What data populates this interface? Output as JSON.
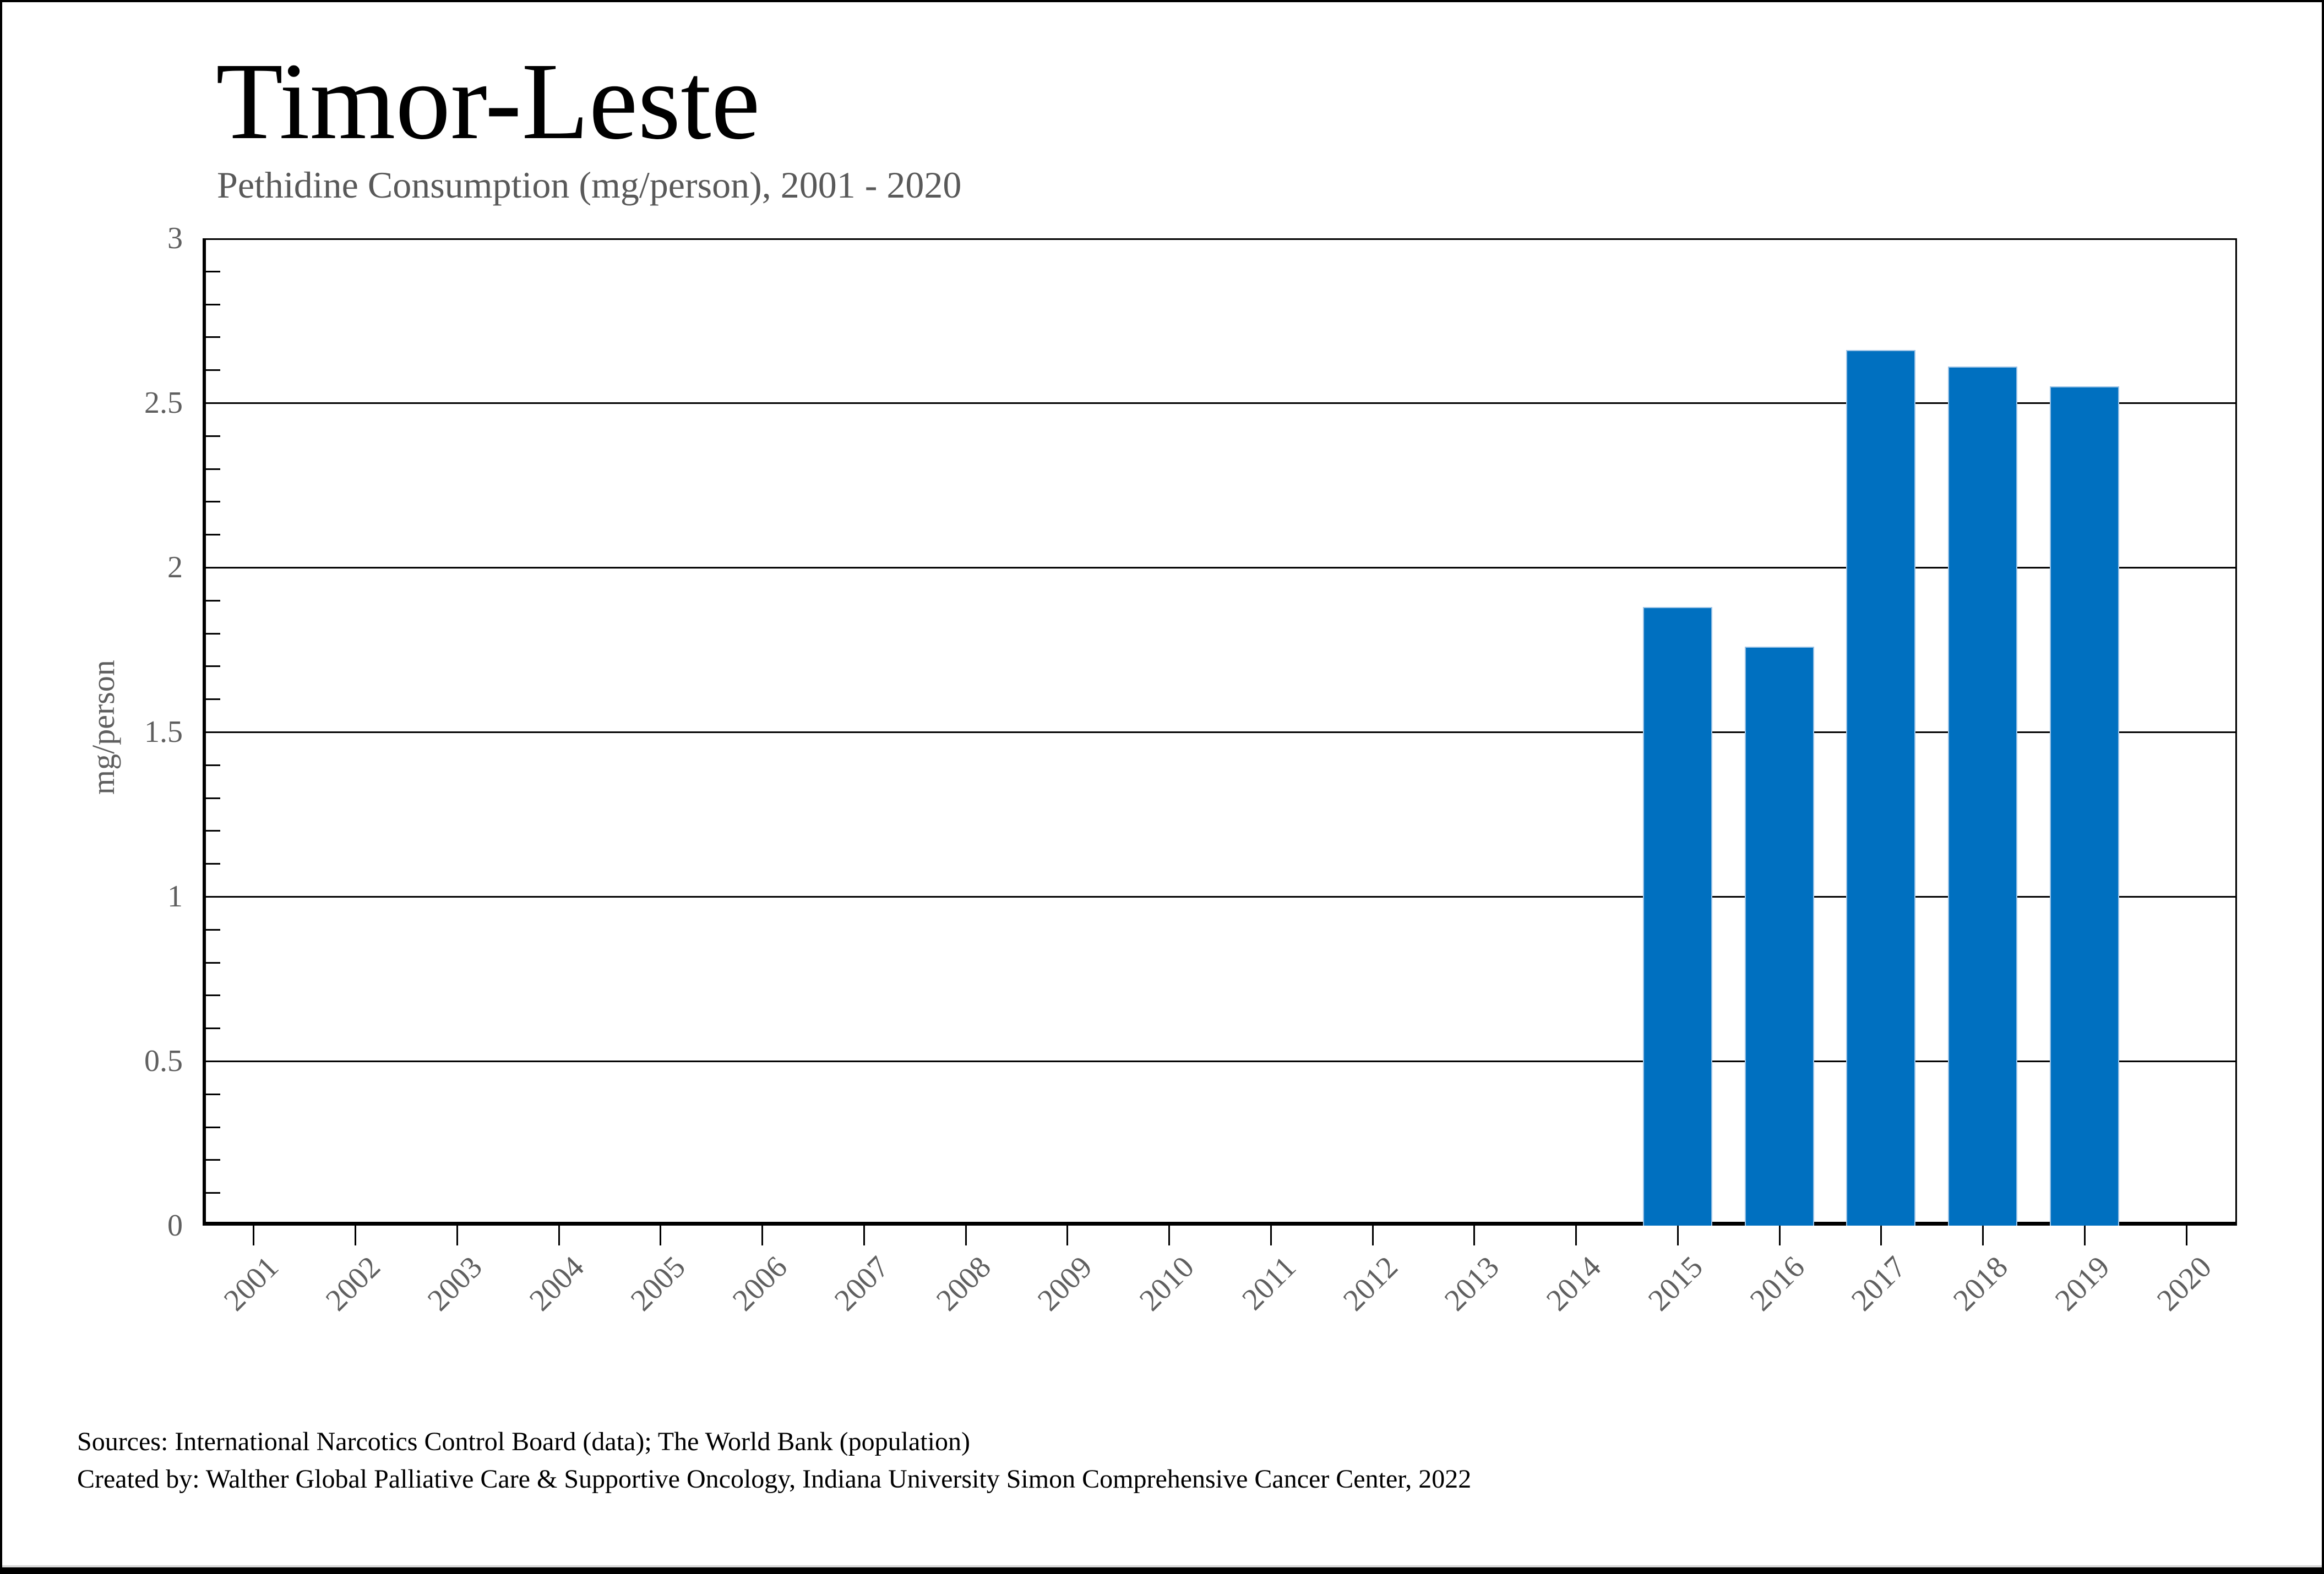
{
  "page": {
    "background_color": "#ffffff",
    "border_color": "#000000"
  },
  "header": {
    "title": "Timor-Leste",
    "subtitle": "Pethidine Consumption (mg/person), 2001 - 2020"
  },
  "footer": {
    "sources_line": "Sources: International Narcotics Control Board (data); The World Bank (population)",
    "created_line": "Created by: Walther Global Palliative Care & Supportive Oncology, Indiana University Simon Comprehensive Cancer Center, 2022"
  },
  "chart_data": {
    "type": "bar",
    "title": "Timor-Leste",
    "subtitle": "Pethidine Consumption (mg/person), 2001 - 2020",
    "xlabel": "",
    "ylabel": "mg/person",
    "categories": [
      "2001",
      "2002",
      "2003",
      "2004",
      "2005",
      "2006",
      "2007",
      "2008",
      "2009",
      "2010",
      "2011",
      "2012",
      "2013",
      "2014",
      "2015",
      "2016",
      "2017",
      "2018",
      "2019",
      "2020"
    ],
    "values": [
      null,
      null,
      null,
      null,
      null,
      null,
      null,
      null,
      null,
      null,
      null,
      null,
      null,
      null,
      1.88,
      1.76,
      2.66,
      2.61,
      2.55,
      null
    ],
    "ylim": [
      0,
      3
    ],
    "ytick_interval": 0.5,
    "ytick_labels": [
      "0",
      "0.5",
      "1",
      "1.5",
      "2",
      "2.5",
      "3"
    ],
    "yminor_tick_interval": 0.1,
    "grid": "horizontal-major-on",
    "legend": "none",
    "x_tick_label_rotation_deg": 45,
    "bar_width_fraction": 0.68,
    "colors": {
      "bar_fill": "#0070C0",
      "bar_edge": "#9DC3E6",
      "axis": "#000000",
      "tick_label": "#5f5f5f",
      "subtitle": "#595959",
      "footer_text": "#000000",
      "bottom_strip": "#d9d9d9"
    }
  }
}
